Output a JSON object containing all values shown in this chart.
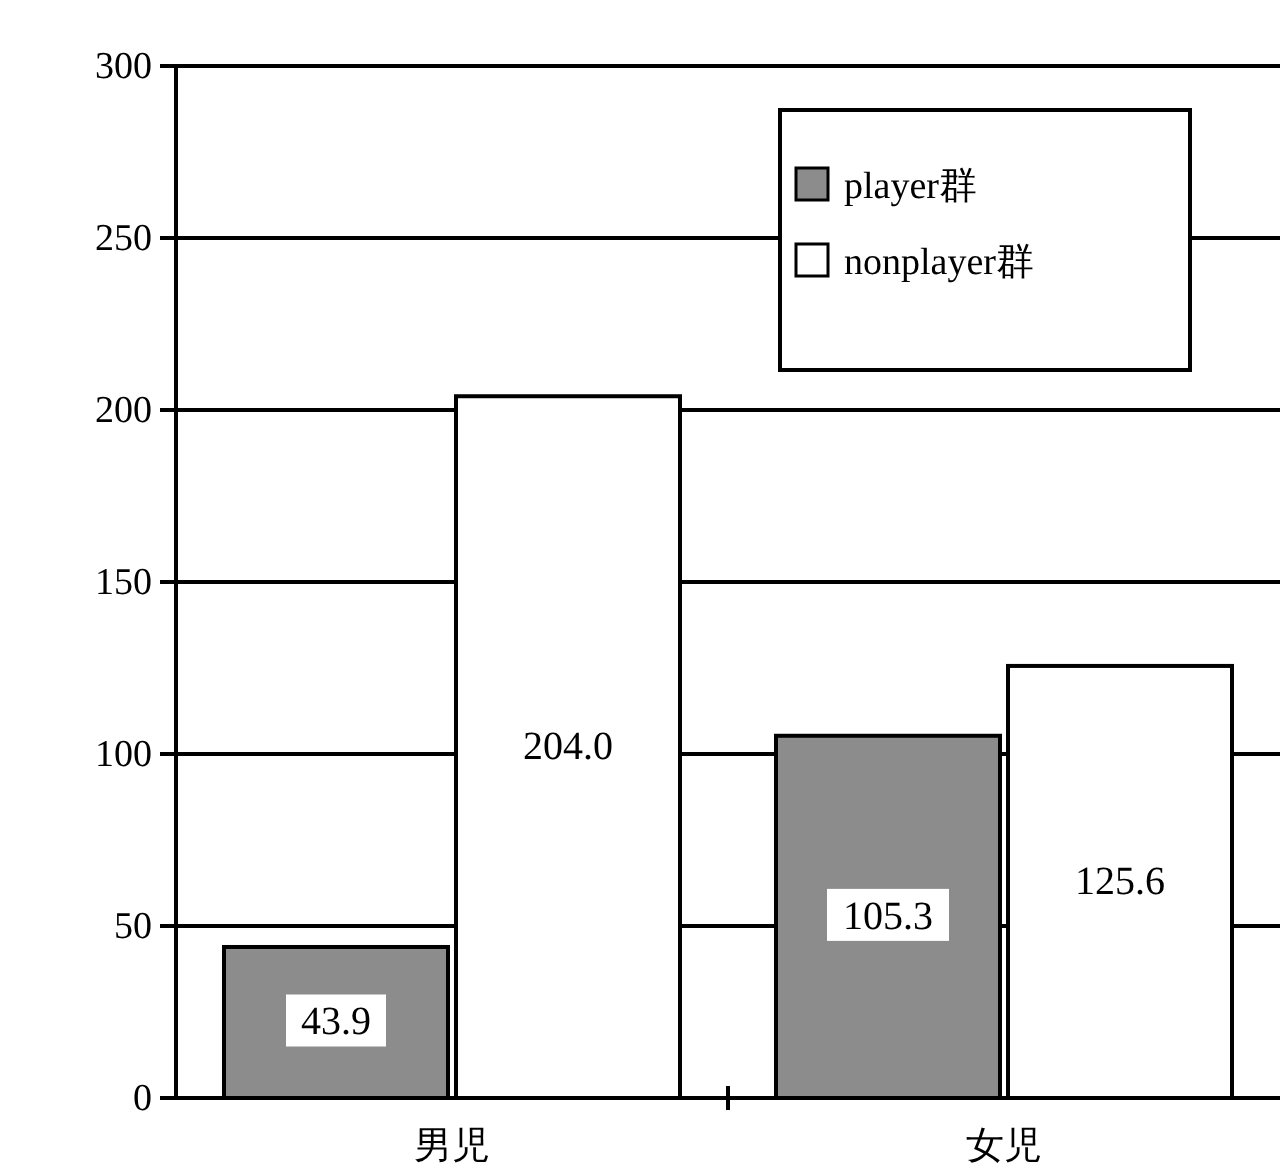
{
  "chart_data": {
    "type": "bar",
    "categories": [
      "男児",
      "女児"
    ],
    "series": [
      {
        "name": "player群",
        "color": "#8c8c8c",
        "values": [
          43.9,
          105.3
        ],
        "value_labels": [
          "43.9",
          "105.3"
        ]
      },
      {
        "name": "nonplayer群",
        "color": "#ffffff",
        "values": [
          204.0,
          125.6
        ],
        "value_labels": [
          "204.0",
          "125.6"
        ]
      }
    ],
    "ylim": [
      0,
      300
    ],
    "yticks": [
      0,
      50,
      100,
      150,
      200,
      250,
      300
    ],
    "grid": "y",
    "legend": "top right"
  }
}
